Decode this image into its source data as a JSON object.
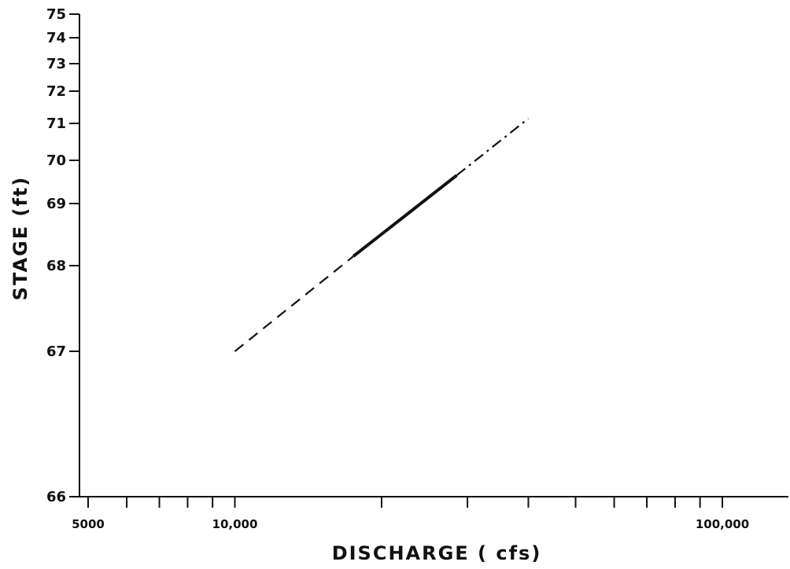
{
  "chart_data": {
    "type": "line",
    "xlabel": "DISCHARGE ( cfs)",
    "ylabel": "STAGE (ft)",
    "x_scale": "log",
    "xlim": [
      4000,
      150000
    ],
    "ylim": [
      66,
      75
    ],
    "x_tick_labels": [
      {
        "value": 5000,
        "label": "5000"
      },
      {
        "value": 10000,
        "label": "10,000"
      },
      {
        "value": 100000,
        "label": "100,000"
      }
    ],
    "x_minor_ticks": [
      6000,
      7000,
      8000,
      9000,
      20000,
      30000,
      40000,
      50000,
      60000,
      70000,
      80000,
      90000
    ],
    "y_ticks": [
      {
        "value": 75,
        "label": "75"
      },
      {
        "value": 74,
        "label": "74"
      },
      {
        "value": 73,
        "label": "73"
      },
      {
        "value": 72,
        "label": "72"
      },
      {
        "value": 71,
        "label": "71"
      },
      {
        "value": 70,
        "label": "70"
      },
      {
        "value": 69,
        "label": "69"
      },
      {
        "value": 68,
        "label": "68"
      },
      {
        "value": 67,
        "label": "67"
      },
      {
        "value": 66,
        "label": "66"
      }
    ],
    "series": [
      {
        "segments": [
          {
            "style": "dashed",
            "points": [
              [
                10000,
                67.0
              ],
              [
                17500,
                68.15
              ]
            ]
          },
          {
            "style": "solid",
            "points": [
              [
                17500,
                68.15
              ],
              [
                28500,
                69.65
              ]
            ]
          },
          {
            "style": "dash-dot",
            "points": [
              [
                28500,
                69.65
              ],
              [
                40000,
                71.15
              ]
            ]
          }
        ]
      }
    ],
    "grid": false,
    "colors": {
      "axis": "#111111",
      "line": "#111111"
    }
  }
}
